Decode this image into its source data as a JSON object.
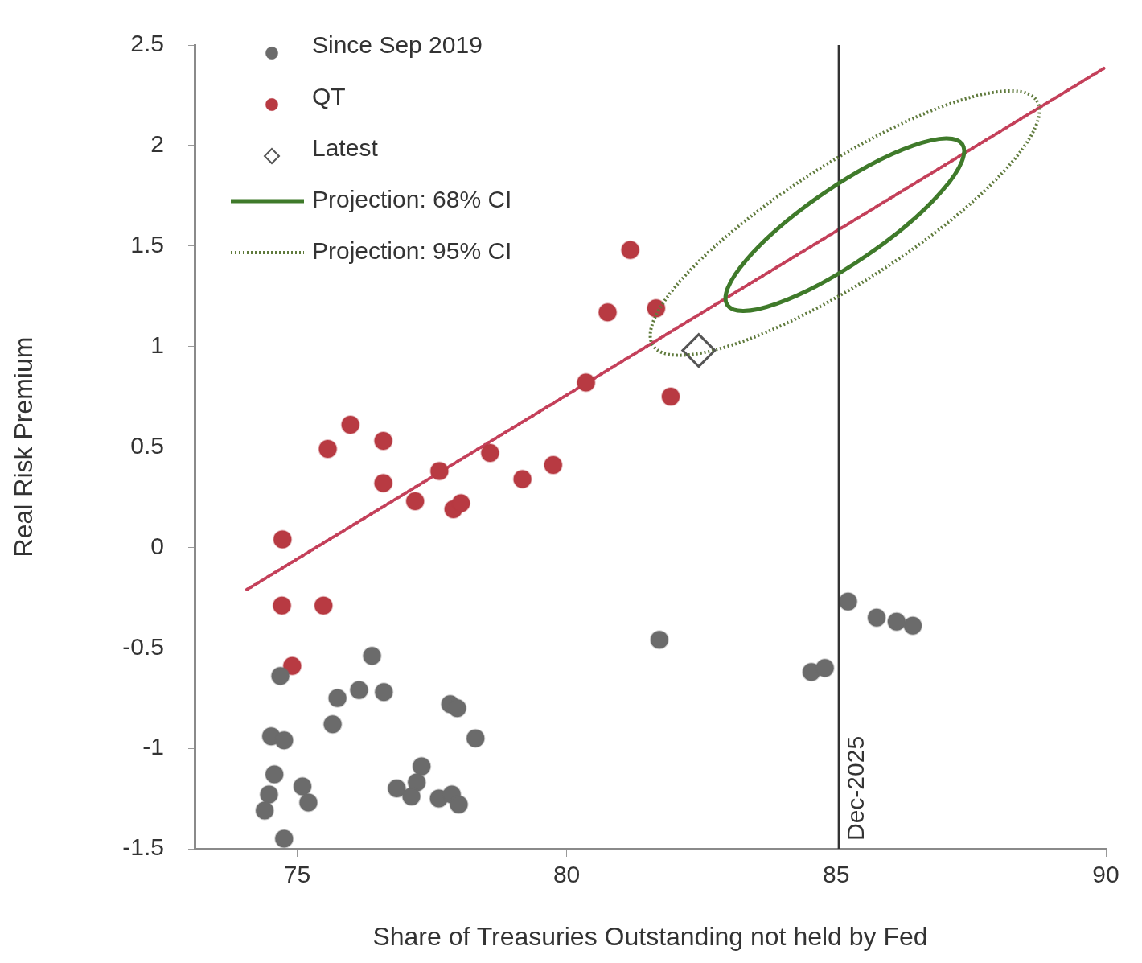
{
  "chart_data": {
    "type": "scatter",
    "xlabel": "Share of Treasuries Outstanding not held by Fed",
    "ylabel": "Real Risk Premium",
    "xlim": [
      73.1,
      90
    ],
    "xticks": [
      75,
      80,
      85,
      90
    ],
    "ylim": [
      -1.5,
      2.5
    ],
    "yticks": [
      -1.5,
      -1,
      -0.5,
      0,
      0.5,
      1,
      1.5,
      2,
      2.5
    ],
    "grid": false,
    "legend": "top left",
    "annotations": [
      "Projection: 68% CI",
      "Projection: 95% CI"
    ],
    "ref_lines": [
      {
        "axis": "x",
        "value": 85.05,
        "label": "Dec-2025",
        "color": "#333333",
        "line_style": "solid"
      }
    ],
    "series": [
      {
        "name": "Since Sep 2019",
        "type": "scatter",
        "marker": "circle",
        "color": "#6b6b6b",
        "x": [
          74.69,
          76.39,
          75.75,
          76.15,
          76.61,
          75.66,
          77.84,
          77.97,
          74.52,
          74.76,
          78.31,
          74.58,
          74.48,
          74.4,
          75.1,
          75.21,
          74.76,
          77.31,
          77.22,
          76.85,
          77.12,
          77.63,
          77.87,
          78.0,
          81.72,
          84.54,
          84.79,
          85.22,
          85.75,
          86.12,
          86.42
        ],
        "values": [
          -0.64,
          -0.54,
          -0.75,
          -0.71,
          -0.72,
          -0.88,
          -0.78,
          -0.8,
          -0.94,
          -0.96,
          -0.95,
          -1.13,
          -1.23,
          -1.31,
          -1.19,
          -1.27,
          -1.45,
          -1.09,
          -1.17,
          -1.2,
          -1.24,
          -1.25,
          -1.23,
          -1.28,
          -0.46,
          -0.62,
          -0.6,
          -0.27,
          -0.35,
          -0.37,
          -0.39
        ]
      },
      {
        "name": "QT",
        "type": "scatter",
        "marker": "circle",
        "color": "#b83a42",
        "x": [
          74.73,
          74.72,
          75.49,
          74.91,
          75.57,
          75.99,
          76.6,
          76.6,
          77.19,
          77.64,
          77.9,
          78.04,
          78.58,
          79.18,
          79.75,
          80.36,
          80.76,
          81.18,
          81.66,
          81.93
        ],
        "values": [
          0.04,
          -0.29,
          -0.29,
          -0.59,
          0.49,
          0.61,
          0.53,
          0.32,
          0.23,
          0.38,
          0.19,
          0.22,
          0.47,
          0.34,
          0.41,
          0.82,
          1.17,
          1.48,
          1.19,
          0.75
        ]
      },
      {
        "name": "Latest",
        "type": "scatter",
        "marker": "diamond",
        "color": "#555555",
        "x": [
          82.45
        ],
        "values": [
          0.98
        ]
      },
      {
        "type": "line",
        "marker": "none",
        "line_style": "dotted",
        "color": "#c4405a",
        "x": [
          74.07,
          90
        ],
        "values": [
          -0.21,
          2.39
        ]
      }
    ]
  }
}
